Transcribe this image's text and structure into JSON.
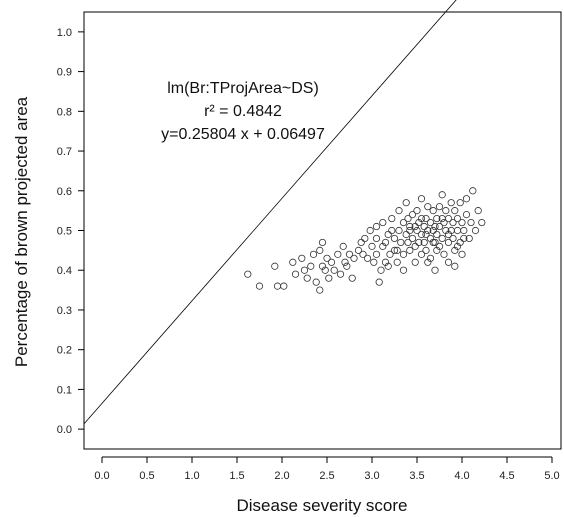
{
  "chart_data": {
    "type": "scatter",
    "xlabel": "Disease severity score",
    "ylabel": "Percentage of brown projected area",
    "xlim": [
      -0.2,
      5.1
    ],
    "ylim": [
      -0.05,
      1.05
    ],
    "xticks": [
      "0.0",
      "0.5",
      "1.0",
      "1.5",
      "2.0",
      "2.5",
      "3.0",
      "3.5",
      "4.0",
      "4.5",
      "5.0"
    ],
    "yticks": [
      "0.0",
      "0.1",
      "0.2",
      "0.3",
      "0.4",
      "0.5",
      "0.6",
      "0.7",
      "0.8",
      "0.9",
      "1.0"
    ],
    "grid": false,
    "annotation": [
      "lm(Br:TProjArea~DS)",
      "r² = 0.4842",
      "y=0.25804 x + 0.06497"
    ],
    "fit": {
      "slope": 0.25804,
      "intercept": 0.06497
    },
    "points": [
      [
        1.62,
        0.39
      ],
      [
        1.75,
        0.36
      ],
      [
        1.92,
        0.41
      ],
      [
        1.95,
        0.36
      ],
      [
        2.02,
        0.36
      ],
      [
        2.12,
        0.42
      ],
      [
        2.15,
        0.39
      ],
      [
        2.22,
        0.43
      ],
      [
        2.25,
        0.4
      ],
      [
        2.28,
        0.38
      ],
      [
        2.32,
        0.41
      ],
      [
        2.35,
        0.44
      ],
      [
        2.38,
        0.37
      ],
      [
        2.42,
        0.45
      ],
      [
        2.42,
        0.35
      ],
      [
        2.45,
        0.47
      ],
      [
        2.45,
        0.41
      ],
      [
        2.48,
        0.4
      ],
      [
        2.5,
        0.43
      ],
      [
        2.52,
        0.38
      ],
      [
        2.55,
        0.42
      ],
      [
        2.58,
        0.4
      ],
      [
        2.62,
        0.44
      ],
      [
        2.65,
        0.39
      ],
      [
        2.68,
        0.46
      ],
      [
        2.7,
        0.42
      ],
      [
        2.72,
        0.41
      ],
      [
        2.75,
        0.44
      ],
      [
        2.78,
        0.38
      ],
      [
        2.8,
        0.43
      ],
      [
        2.85,
        0.45
      ],
      [
        2.9,
        0.44
      ],
      [
        2.92,
        0.48
      ],
      [
        2.95,
        0.43
      ],
      [
        2.98,
        0.5
      ],
      [
        3.0,
        0.46
      ],
      [
        3.02,
        0.42
      ],
      [
        3.05,
        0.48
      ],
      [
        3.05,
        0.44
      ],
      [
        3.08,
        0.37
      ],
      [
        3.1,
        0.4
      ],
      [
        3.12,
        0.46
      ],
      [
        3.12,
        0.52
      ],
      [
        3.15,
        0.47
      ],
      [
        3.15,
        0.42
      ],
      [
        3.18,
        0.49
      ],
      [
        3.2,
        0.44
      ],
      [
        3.22,
        0.53
      ],
      [
        3.22,
        0.5
      ],
      [
        3.25,
        0.45
      ],
      [
        3.25,
        0.48
      ],
      [
        3.28,
        0.42
      ],
      [
        3.3,
        0.5
      ],
      [
        3.3,
        0.55
      ],
      [
        3.32,
        0.47
      ],
      [
        3.35,
        0.52
      ],
      [
        3.35,
        0.44
      ],
      [
        3.38,
        0.49
      ],
      [
        3.38,
        0.57
      ],
      [
        3.4,
        0.47
      ],
      [
        3.4,
        0.53
      ],
      [
        3.42,
        0.5
      ],
      [
        3.42,
        0.45
      ],
      [
        3.45,
        0.54
      ],
      [
        3.45,
        0.48
      ],
      [
        3.48,
        0.51
      ],
      [
        3.48,
        0.46
      ],
      [
        3.5,
        0.5
      ],
      [
        3.5,
        0.55
      ],
      [
        3.52,
        0.47
      ],
      [
        3.52,
        0.52
      ],
      [
        3.55,
        0.44
      ],
      [
        3.55,
        0.49
      ],
      [
        3.55,
        0.58
      ],
      [
        3.58,
        0.51
      ],
      [
        3.58,
        0.47
      ],
      [
        3.6,
        0.53
      ],
      [
        3.6,
        0.49
      ],
      [
        3.6,
        0.45
      ],
      [
        3.62,
        0.56
      ],
      [
        3.62,
        0.5
      ],
      [
        3.65,
        0.48
      ],
      [
        3.65,
        0.52
      ],
      [
        3.65,
        0.43
      ],
      [
        3.68,
        0.5
      ],
      [
        3.68,
        0.55
      ],
      [
        3.7,
        0.47
      ],
      [
        3.7,
        0.51
      ],
      [
        3.7,
        0.4
      ],
      [
        3.72,
        0.53
      ],
      [
        3.72,
        0.49
      ],
      [
        3.75,
        0.56
      ],
      [
        3.75,
        0.46
      ],
      [
        3.75,
        0.51
      ],
      [
        3.78,
        0.59
      ],
      [
        3.78,
        0.48
      ],
      [
        3.8,
        0.52
      ],
      [
        3.8,
        0.44
      ],
      [
        3.82,
        0.5
      ],
      [
        3.82,
        0.55
      ],
      [
        3.85,
        0.47
      ],
      [
        3.85,
        0.53
      ],
      [
        3.85,
        0.42
      ],
      [
        3.88,
        0.5
      ],
      [
        3.88,
        0.57
      ],
      [
        3.9,
        0.48
      ],
      [
        3.9,
        0.52
      ],
      [
        3.92,
        0.45
      ],
      [
        3.92,
        0.55
      ],
      [
        3.95,
        0.5
      ],
      [
        3.95,
        0.53
      ],
      [
        3.98,
        0.47
      ],
      [
        3.98,
        0.57
      ],
      [
        4.0,
        0.52
      ],
      [
        4.0,
        0.44
      ],
      [
        4.02,
        0.5
      ],
      [
        4.05,
        0.54
      ],
      [
        4.05,
        0.58
      ],
      [
        4.08,
        0.48
      ],
      [
        4.1,
        0.52
      ],
      [
        4.12,
        0.6
      ],
      [
        4.15,
        0.5
      ],
      [
        4.18,
        0.55
      ],
      [
        4.22,
        0.52
      ],
      [
        3.92,
        0.41
      ],
      [
        3.62,
        0.42
      ],
      [
        3.35,
        0.4
      ],
      [
        3.18,
        0.41
      ],
      [
        3.48,
        0.42
      ],
      [
        3.28,
        0.45
      ],
      [
        3.05,
        0.51
      ],
      [
        2.88,
        0.47
      ],
      [
        3.72,
        0.45
      ],
      [
        3.85,
        0.49
      ],
      [
        3.55,
        0.53
      ],
      [
        3.42,
        0.51
      ],
      [
        3.68,
        0.47
      ],
      [
        3.95,
        0.46
      ],
      [
        4.02,
        0.48
      ],
      [
        3.78,
        0.53
      ]
    ]
  }
}
